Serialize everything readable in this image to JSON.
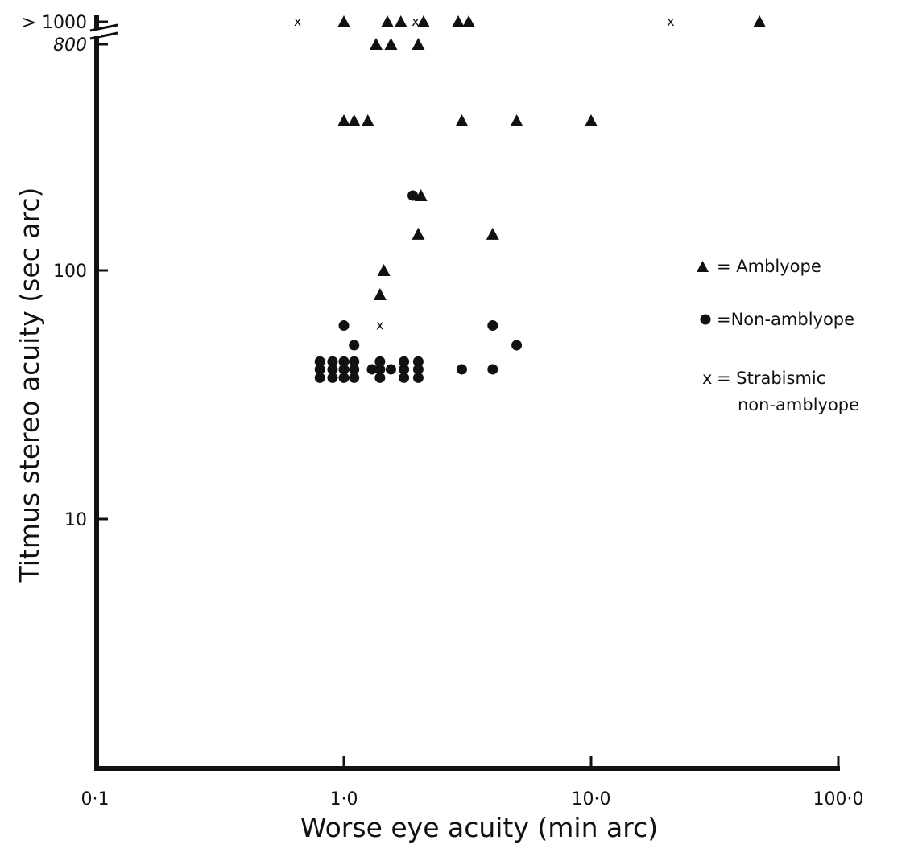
{
  "chart_data": {
    "type": "scatter",
    "title": "",
    "xlabel": "Worse eye acuity (min arc)",
    "ylabel": "Titmus stereo acuity (sec arc)",
    "xscale": "log",
    "yscale": "log",
    "xlim": [
      0.1,
      100
    ],
    "ylim": [
      1,
      1000
    ],
    "x_ticks": [
      {
        "value": 0.1,
        "label": "0·1"
      },
      {
        "value": 1,
        "label": "1·0"
      },
      {
        "value": 10,
        "label": "10·0"
      },
      {
        "value": 100,
        "label": "100·0"
      }
    ],
    "y_ticks": [
      {
        "value": 10,
        "label": "10"
      },
      {
        "value": 100,
        "label": "100"
      },
      {
        "value": 800,
        "label": "800"
      },
      {
        "value": 1000,
        "label": "> 1000"
      }
    ],
    "axis_break": "y, between 800 and >1000",
    "grid": false,
    "legend_position": "right",
    "series": [
      {
        "name": "Amblyope",
        "label": "= Amblyope",
        "marker": "triangle",
        "points": [
          [
            1.0,
            1000
          ],
          [
            1.5,
            1000
          ],
          [
            1.7,
            1000
          ],
          [
            2.1,
            1000
          ],
          [
            2.9,
            1000
          ],
          [
            3.2,
            1000
          ],
          [
            48,
            1000
          ],
          [
            1.35,
            800
          ],
          [
            1.55,
            800
          ],
          [
            2.0,
            800
          ],
          [
            1.0,
            400
          ],
          [
            1.1,
            400
          ],
          [
            1.25,
            400
          ],
          [
            3.0,
            400
          ],
          [
            5.0,
            400
          ],
          [
            10.0,
            400
          ],
          [
            2.05,
            200
          ],
          [
            2.0,
            140
          ],
          [
            4.0,
            140
          ],
          [
            1.45,
            100
          ],
          [
            1.4,
            80
          ]
        ]
      },
      {
        "name": "Non-amblyope",
        "label": "=Non-amblyope",
        "marker": "circle",
        "points": [
          [
            1.9,
            200
          ],
          [
            1.0,
            60
          ],
          [
            4.0,
            60
          ],
          [
            1.1,
            50
          ],
          [
            5.0,
            50
          ],
          [
            0.8,
            43
          ],
          [
            0.9,
            43
          ],
          [
            1.0,
            43
          ],
          [
            1.1,
            43
          ],
          [
            1.4,
            43
          ],
          [
            1.75,
            43
          ],
          [
            2.0,
            43
          ],
          [
            0.8,
            40
          ],
          [
            0.9,
            40
          ],
          [
            1.0,
            40
          ],
          [
            1.1,
            40
          ],
          [
            1.3,
            40
          ],
          [
            1.4,
            40
          ],
          [
            1.55,
            40
          ],
          [
            1.75,
            40
          ],
          [
            2.0,
            40
          ],
          [
            3.0,
            40
          ],
          [
            4.0,
            40
          ],
          [
            0.8,
            37
          ],
          [
            0.9,
            37
          ],
          [
            1.0,
            37
          ],
          [
            1.1,
            37
          ],
          [
            1.4,
            37
          ],
          [
            1.75,
            37
          ],
          [
            2.0,
            37
          ]
        ]
      },
      {
        "name": "Strabismic non-amblyope",
        "label": "= Strabismic",
        "label_line2": "non-amblyope",
        "marker": "x",
        "points": [
          [
            0.65,
            1000
          ],
          [
            1.95,
            1000
          ],
          [
            21,
            1000
          ],
          [
            1.4,
            60
          ]
        ]
      }
    ]
  }
}
